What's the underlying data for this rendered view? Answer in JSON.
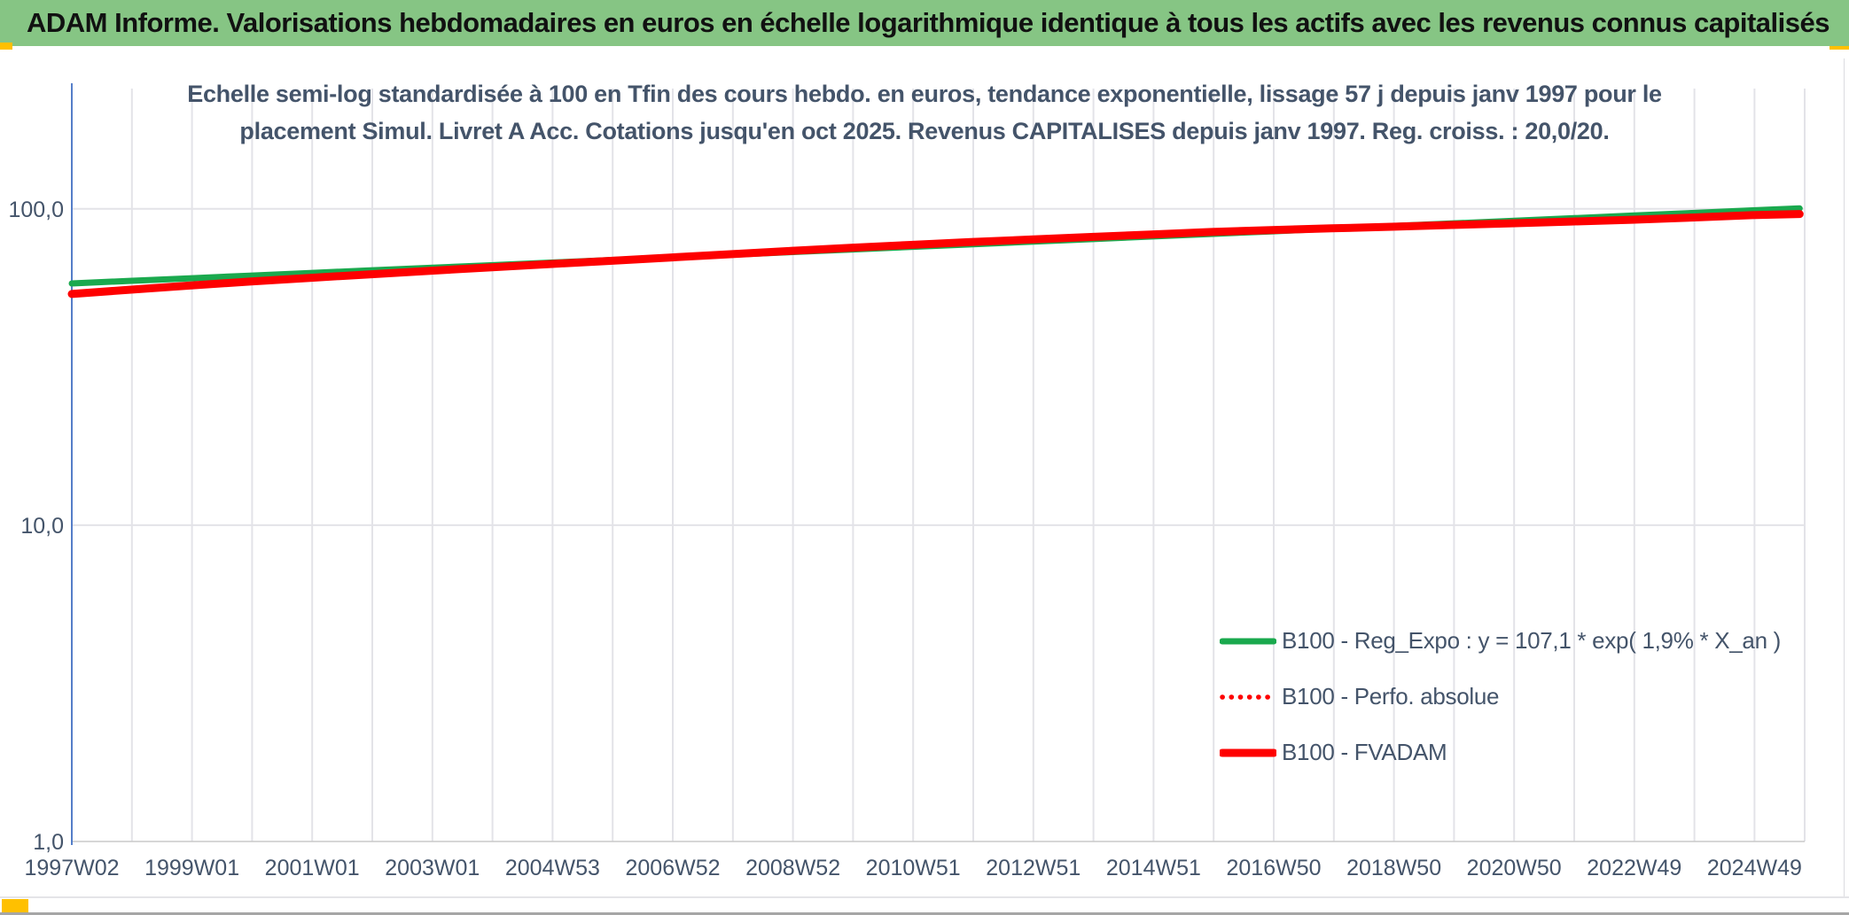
{
  "header": {
    "title": "ADAM Informe. Valorisations hebdomadaires en euros en échelle logarithmique identique à tous les actifs avec les revenus connus capitalisés"
  },
  "chart": {
    "title_line1": "Echelle semi-log standardisée à 100 en Tfin des cours hebdo. en euros, tendance exponentielle, lissage 57 j depuis janv 1997 pour le",
    "title_line2": "placement Simul. Livret A Acc. Cotations jusqu'en oct 2025. Revenus CAPITALISES depuis janv 1997. Reg. croiss. : 20,0/20."
  },
  "colors": {
    "header_bg": "#86c584",
    "accent_gold": "#FFC000",
    "text_slate": "#44546A",
    "series_green": "#1AA94E",
    "series_red": "#FE0000",
    "axis_line_blue": "#4472C4",
    "gridline": "#e3e3e8",
    "baseline": "#c9c9c9"
  },
  "chart_data": {
    "type": "line",
    "y_scale": "log10",
    "ylim": [
      1,
      200
    ],
    "grid": "on",
    "legend_position": "inside-lower-right",
    "y_ticks": [
      {
        "value": 100,
        "label": "100,0"
      },
      {
        "value": 10,
        "label": "10,0"
      },
      {
        "value": 1,
        "label": "1,0"
      }
    ],
    "x_ticks": [
      "1997W02",
      "1999W01",
      "2001W01",
      "2003W01",
      "2004W53",
      "2006W52",
      "2008W52",
      "2010W51",
      "2012W51",
      "2014W51",
      "2016W50",
      "2018W50",
      "2020W50",
      "2022W49",
      "2024W49"
    ],
    "x_years": [
      1997.04,
      1998,
      1999,
      2000,
      2001,
      2002,
      2003,
      2004,
      2005,
      2006,
      2007,
      2008,
      2009,
      2010,
      2011,
      2012,
      2013,
      2014,
      2015,
      2016,
      2017,
      2018,
      2019,
      2020,
      2021,
      2022,
      2023,
      2024,
      2025,
      2025.79
    ],
    "series": [
      {
        "name": "B100 - Reg_Expo : y = 107,1 * exp( 1,9% *  X_an )",
        "color": "#1AA94E",
        "style": "solid",
        "width": 7,
        "values": [
          58.1,
          59.2,
          60.3,
          61.5,
          62.7,
          63.9,
          65.1,
          66.3,
          67.6,
          68.9,
          70.2,
          71.6,
          73.0,
          74.4,
          75.8,
          77.2,
          78.7,
          80.2,
          81.8,
          83.3,
          84.9,
          86.6,
          88.2,
          89.9,
          91.6,
          93.4,
          95.2,
          97.0,
          98.9,
          100.3
        ]
      },
      {
        "name": "B100 - Perfo. absolue",
        "color": "#FE0000",
        "style": "dotted",
        "width": 5.5,
        "values": [
          53.8,
          55.5,
          57.2,
          58.9,
          60.5,
          62.1,
          63.7,
          65.3,
          66.9,
          68.5,
          70.2,
          71.9,
          73.6,
          75.3,
          76.9,
          78.5,
          80.0,
          81.5,
          83.0,
          84.5,
          85.7,
          86.8,
          87.8,
          88.9,
          90.0,
          91.2,
          92.4,
          93.9,
          95.5,
          96.3
        ]
      },
      {
        "name": "B100 - FVADAM",
        "color": "#FE0000",
        "style": "solid",
        "width": 9,
        "values": [
          53.8,
          55.5,
          57.2,
          58.9,
          60.5,
          62.1,
          63.7,
          65.3,
          66.9,
          68.5,
          70.2,
          71.9,
          73.6,
          75.3,
          76.9,
          78.5,
          80.0,
          81.5,
          83.0,
          84.5,
          85.7,
          86.8,
          87.8,
          88.9,
          90.0,
          91.2,
          92.4,
          93.9,
          95.5,
          96.3
        ]
      }
    ]
  }
}
